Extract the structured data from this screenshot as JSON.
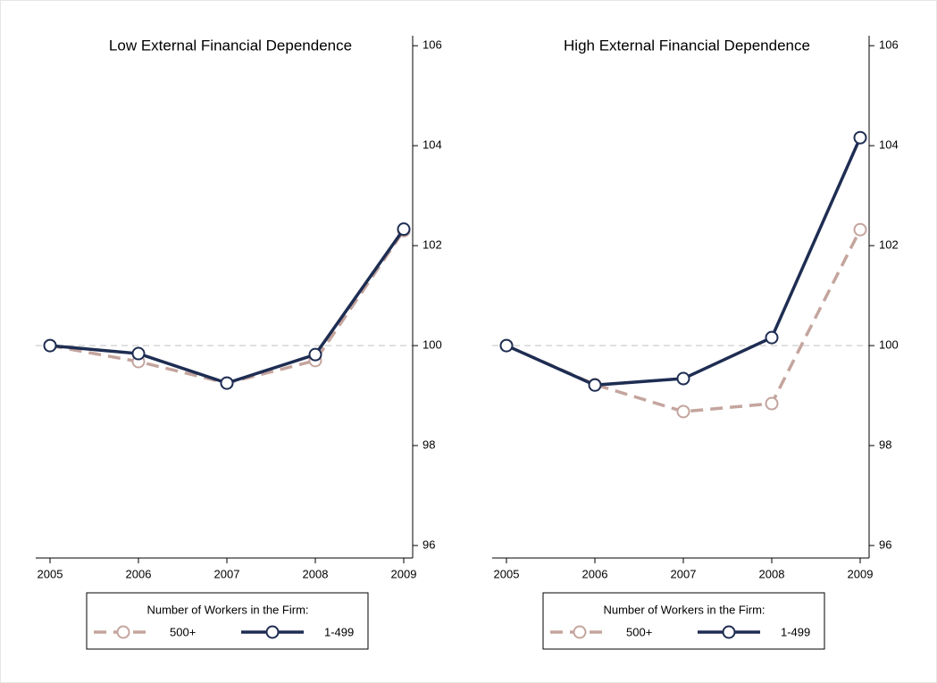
{
  "chart_data": [
    {
      "type": "line",
      "title": "Low External Financial Dependence",
      "categories": [
        "2005",
        "2006",
        "2007",
        "2008",
        "2009"
      ],
      "series": [
        {
          "name": "500+",
          "color": "#c4a59e",
          "dash": true,
          "values": [
            100,
            99.68,
            99.25,
            99.7,
            102.3
          ]
        },
        {
          "name": "1-499",
          "color": "#1e2d52",
          "dash": false,
          "values": [
            100,
            99.84,
            99.25,
            99.82,
            102.33
          ]
        }
      ],
      "ylim": [
        95.75,
        106.2
      ],
      "yticks": [
        96,
        98,
        100,
        102,
        104,
        106
      ],
      "reference_line": 100,
      "legend_title": "Number of Workers in the Firm:"
    },
    {
      "type": "line",
      "title": "High External Financial Dependence",
      "categories": [
        "2005",
        "2006",
        "2007",
        "2008",
        "2009"
      ],
      "series": [
        {
          "name": "500+",
          "color": "#c4a59e",
          "dash": true,
          "values": [
            100,
            99.22,
            98.68,
            98.84,
            102.32
          ]
        },
        {
          "name": "1-499",
          "color": "#1e2d52",
          "dash": false,
          "values": [
            100,
            99.21,
            99.34,
            100.16,
            104.16
          ]
        }
      ],
      "ylim": [
        95.75,
        106.2
      ],
      "yticks": [
        96,
        98,
        100,
        102,
        104,
        106
      ],
      "reference_line": 100,
      "legend_title": "Number of Workers in the Firm:"
    }
  ]
}
